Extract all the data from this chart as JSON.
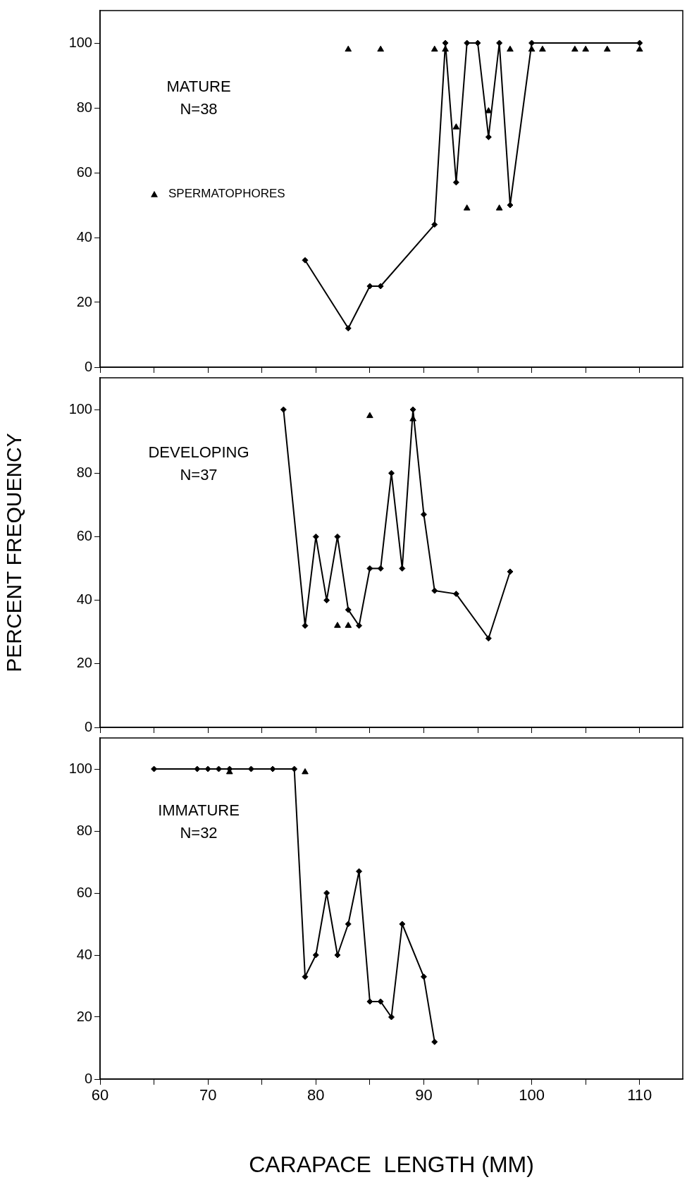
{
  "chart_data": [
    {
      "type": "line",
      "annotations": [
        "MATURE",
        "N=38"
      ],
      "xlim": [
        60,
        114
      ],
      "xticks": [
        60,
        {
          "value": 65,
          "label": null
        },
        70,
        {
          "value": 75,
          "label": null
        },
        80,
        {
          "value": 85,
          "label": null
        },
        90,
        {
          "value": 95,
          "label": null
        },
        100,
        {
          "value": 105,
          "label": null
        },
        110
      ],
      "ylim": [
        0,
        110
      ],
      "yticks": [
        0,
        20,
        40,
        60,
        80,
        100
      ],
      "tick_labels": "y",
      "legend": "left",
      "grid": false,
      "series": [
        {
          "color": "#000000",
          "marker": "diamond",
          "x": [
            79,
            83,
            85,
            86,
            91,
            92,
            93,
            94,
            95,
            96,
            97,
            98,
            100,
            110
          ],
          "values": [
            33,
            12,
            25,
            25,
            44,
            100,
            57,
            100,
            100,
            71,
            100,
            50,
            100,
            100
          ]
        },
        {
          "type": "scatter",
          "name": "SPERMATOPHORES",
          "color": "#000000",
          "marker": "triangle",
          "x": [
            83,
            86,
            91,
            92,
            93,
            94,
            96,
            97,
            98,
            100,
            101,
            104,
            105,
            107,
            110
          ],
          "values": [
            98,
            98,
            98,
            98,
            74,
            49,
            79,
            49,
            98,
            98,
            98,
            98,
            98,
            98,
            98
          ]
        }
      ]
    },
    {
      "type": "line",
      "ylabel": "PERCENT FREQUENCY",
      "annotations": [
        "DEVELOPING",
        "N=37"
      ],
      "xlim": [
        60,
        114
      ],
      "xticks": [
        60,
        {
          "value": 65,
          "label": null
        },
        70,
        {
          "value": 75,
          "label": null
        },
        80,
        {
          "value": 85,
          "label": null
        },
        90,
        {
          "value": 95,
          "label": null
        },
        100,
        {
          "value": 105,
          "label": null
        },
        110
      ],
      "ylim": [
        0,
        110
      ],
      "yticks": [
        0,
        20,
        40,
        60,
        80,
        100
      ],
      "tick_labels": "y",
      "grid": false,
      "series": [
        {
          "color": "#000000",
          "marker": "diamond",
          "x": [
            77,
            79,
            80,
            81,
            82,
            83,
            84,
            85,
            86,
            87,
            88,
            89,
            90,
            91,
            93,
            96,
            98
          ],
          "values": [
            100,
            32,
            60,
            40,
            60,
            37,
            32,
            50,
            50,
            80,
            50,
            100,
            67,
            43,
            42,
            28,
            49
          ]
        },
        {
          "type": "scatter",
          "color": "#000000",
          "marker": "triangle",
          "x": [
            82,
            83,
            85,
            89
          ],
          "values": [
            32,
            32,
            98,
            97
          ]
        }
      ]
    },
    {
      "type": "line",
      "xlabel": "CARAPACE  LENGTH (MM)",
      "annotations": [
        "IMMATURE",
        "N=32"
      ],
      "xlim": [
        60,
        114
      ],
      "xticks": [
        60,
        {
          "value": 65,
          "label": null
        },
        70,
        {
          "value": 75,
          "label": null
        },
        80,
        {
          "value": 85,
          "label": null
        },
        90,
        {
          "value": 95,
          "label": null
        },
        100,
        {
          "value": 105,
          "label": null
        },
        110
      ],
      "ylim": [
        0,
        110
      ],
      "yticks": [
        0,
        20,
        40,
        60,
        80,
        100
      ],
      "grid": false,
      "series": [
        {
          "color": "#000000",
          "marker": "diamond",
          "x": [
            65,
            69,
            70,
            71,
            72,
            74,
            76,
            78,
            79,
            80,
            81,
            82,
            83,
            84,
            85,
            86,
            87,
            88,
            90,
            91
          ],
          "values": [
            100,
            100,
            100,
            100,
            100,
            100,
            100,
            100,
            33,
            40,
            60,
            40,
            50,
            67,
            25,
            25,
            20,
            50,
            33,
            12
          ]
        },
        {
          "type": "scatter",
          "color": "#000000",
          "marker": "triangle",
          "x": [
            72,
            79
          ],
          "values": [
            99,
            99
          ]
        }
      ]
    }
  ]
}
